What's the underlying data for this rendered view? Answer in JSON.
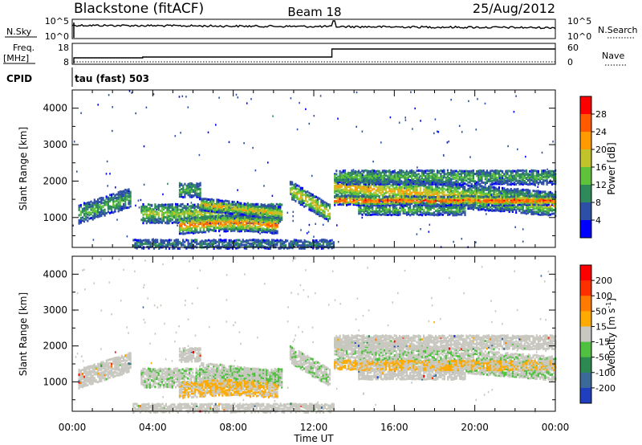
{
  "header": {
    "station": "Blackstone (fitACF)",
    "beam": "Beam 18",
    "date": "25/Aug/2012"
  },
  "panels": {
    "nsky": {
      "label": "N.Sky",
      "tick_top": "10^5",
      "tick_bottom": "10^0"
    },
    "nsearch": {
      "label": "N.Search",
      "tick_top": "10^5",
      "tick_bottom": "10^0"
    },
    "freq": {
      "label_line1": "Freq.",
      "label_line2": "[MHz]",
      "tick_top": "18",
      "tick_bottom": "8"
    },
    "nave": {
      "label": "Nave",
      "tick_top": "60",
      "tick_bottom": "0"
    },
    "cpid": {
      "label": "CPID",
      "text": "tau (fast) 503"
    }
  },
  "chart_data": [
    {
      "type": "heatmap",
      "name": "power",
      "xlabel": "Time UT",
      "ylabel": "Slant Range [km]",
      "x_range_hours": [
        0,
        24
      ],
      "ylim": [
        180,
        4500
      ],
      "ytick_values": [
        1000,
        2000,
        3000,
        4000
      ],
      "colorbar": {
        "label": "Power [dB]",
        "tick_labels": [
          "4",
          "8",
          "12",
          "16",
          "20",
          "24",
          "28"
        ],
        "colors": [
          "#0000ff",
          "#2d4fa6",
          "#2e8a5a",
          "#5ec23a",
          "#c2c22a",
          "#ff9a00",
          "#ff5a00",
          "#ff0000"
        ]
      }
    },
    {
      "type": "heatmap",
      "name": "velocity",
      "xlabel": "Time UT",
      "ylabel": "Slant Range [km]",
      "x_range_hours": [
        0,
        24
      ],
      "ylim": [
        180,
        4500
      ],
      "ytick_values": [
        1000,
        2000,
        3000,
        4000
      ],
      "colorbar": {
        "label": "Velocity [m s",
        "label_sup": "-1",
        "label_close": "]",
        "tick_labels": [
          "200",
          "100",
          "50",
          "15",
          "-15",
          "-50",
          "-100",
          "-200"
        ],
        "colors": [
          "#1f3fbf",
          "#3b6a9a",
          "#2c8a50",
          "#4fc040",
          "#c8c8c0",
          "#ffaa00",
          "#ff7a00",
          "#ff3000",
          "#ff0000"
        ]
      }
    }
  ],
  "x_axis": {
    "label": "Time UT",
    "tick_labels": [
      "00:00",
      "04:00",
      "08:00",
      "12:00",
      "16:00",
      "20:00",
      "00:00"
    ]
  },
  "colors": {
    "axis": "#000000",
    "velocity_gray": "#c8c8c0"
  }
}
